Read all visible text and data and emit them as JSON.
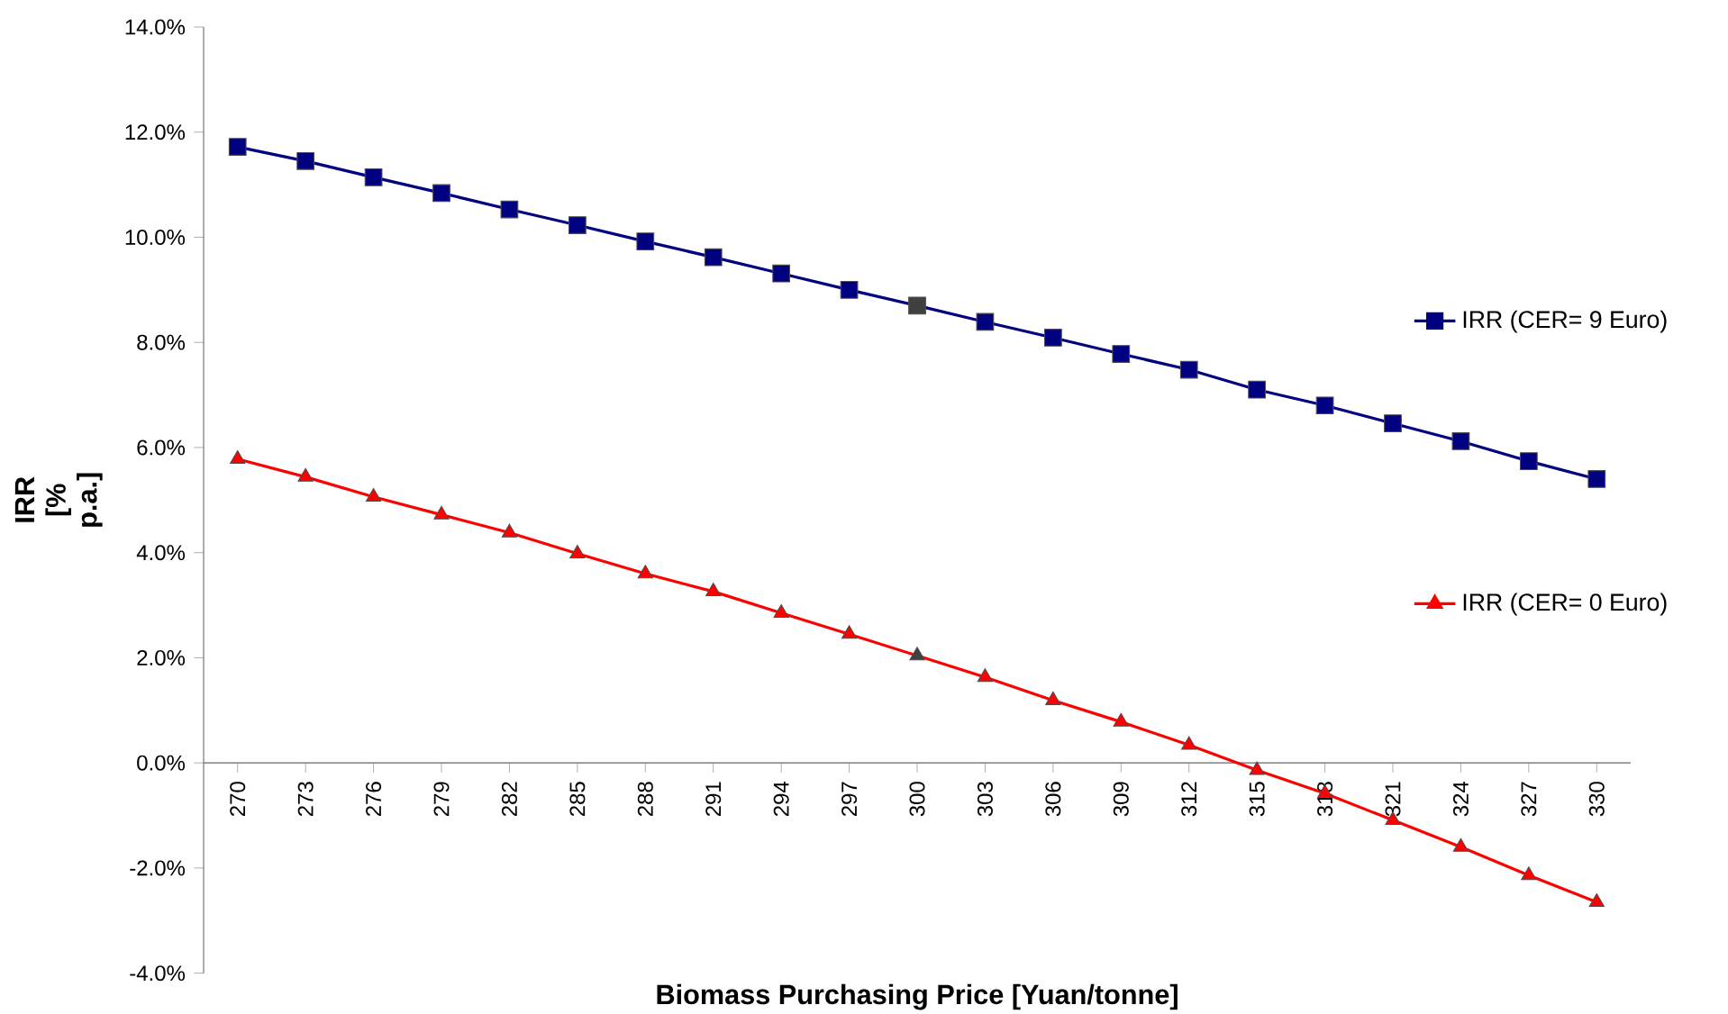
{
  "chart_data": {
    "type": "line",
    "xlabel": "Biomass Purchasing Price [Yuan/tonne]",
    "ylabel": "IRR [% p.a.]",
    "categories": [
      "270",
      "273",
      "276",
      "279",
      "282",
      "285",
      "288",
      "291",
      "294",
      "297",
      "300",
      "303",
      "306",
      "309",
      "312",
      "315",
      "318",
      "321",
      "324",
      "327",
      "330"
    ],
    "series": [
      {
        "name": "IRR (CER= 9 Euro)",
        "color": "#000080",
        "marker": "square",
        "colors": [
          "#000080",
          "#000080",
          "#000080",
          "#000080",
          "#000080",
          "#000080",
          "#000080",
          "#000080",
          "#000080",
          "#000080",
          "#404040",
          "#000080",
          "#000080",
          "#000080",
          "#000080",
          "#000080",
          "#000080",
          "#000080",
          "#000080",
          "#000080",
          "#000080"
        ],
        "values": [
          11.72,
          11.45,
          11.14,
          10.84,
          10.53,
          10.23,
          9.92,
          9.62,
          9.31,
          9.0,
          8.7,
          8.39,
          8.09,
          7.78,
          7.48,
          7.1,
          6.8,
          6.46,
          6.12,
          5.74,
          5.4
        ]
      },
      {
        "name": "IRR (CER= 0 Euro)",
        "color": "#ff0000",
        "marker": "triangle",
        "colors": [
          "#ff0000",
          "#ff0000",
          "#ff0000",
          "#ff0000",
          "#ff0000",
          "#ff0000",
          "#ff0000",
          "#ff0000",
          "#ff0000",
          "#ff0000",
          "#404040",
          "#ff0000",
          "#ff0000",
          "#ff0000",
          "#ff0000",
          "#ff0000",
          "#ff0000",
          "#ff0000",
          "#ff0000",
          "#ff0000",
          "#ff0000"
        ],
        "values": [
          5.78,
          5.44,
          5.06,
          4.72,
          4.38,
          3.98,
          3.6,
          3.26,
          2.85,
          2.45,
          2.04,
          1.63,
          1.19,
          0.78,
          0.34,
          -0.14,
          -0.58,
          -1.09,
          -1.6,
          -2.14,
          -2.65
        ]
      }
    ],
    "ylim": [
      -4,
      14
    ],
    "yticks": [
      {
        "value": -4,
        "label": "-4.0%"
      },
      {
        "value": -2,
        "label": "-2.0%"
      },
      {
        "value": 0,
        "label": "0.0%"
      },
      {
        "value": 2,
        "label": "2.0%"
      },
      {
        "value": 4,
        "label": "4.0%"
      },
      {
        "value": 6,
        "label": "6.0%"
      },
      {
        "value": 8,
        "label": "8.0%"
      },
      {
        "value": 10,
        "label": "10.0%"
      },
      {
        "value": 12,
        "label": "12.0%"
      },
      {
        "value": 14,
        "label": "14.0%"
      }
    ],
    "legend": "right",
    "grid": false
  }
}
